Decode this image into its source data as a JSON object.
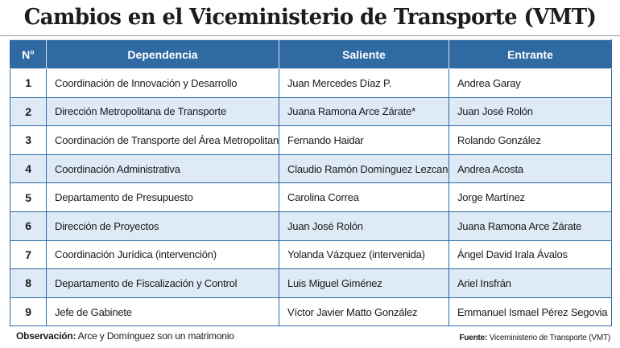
{
  "title": "Cambios en el Viceministerio de Transporte (VMT)",
  "table": {
    "headers": {
      "num": "N°",
      "dependencia": "Dependencia",
      "saliente": "Saliente",
      "entrante": "Entrante"
    },
    "rows": [
      {
        "num": "1",
        "dependencia": "Coordinación de Innovación y Desarrollo",
        "saliente": "Juan Mercedes Díaz P.",
        "entrante": "Andrea Garay"
      },
      {
        "num": "2",
        "dependencia": "Dirección Metropolitana de Transporte",
        "saliente": "Juana Ramona Arce Zárate*",
        "entrante": "Juan José Rolón"
      },
      {
        "num": "3",
        "dependencia": "Coordinación de Transporte del Área Metropolitana",
        "saliente": "Fernando Haidar",
        "entrante": "Rolando González"
      },
      {
        "num": "4",
        "dependencia": "Coordinación Administrativa",
        "saliente": "Claudio Ramón Domínguez Lezcano*",
        "entrante": "Andrea Acosta"
      },
      {
        "num": "5",
        "dependencia": "Departamento de Presupuesto",
        "saliente": "Carolina Correa",
        "entrante": "Jorge Martínez"
      },
      {
        "num": "6",
        "dependencia": "Dirección de Proyectos",
        "saliente": "Juan José Rolón",
        "entrante": "Juana Ramona Arce Zárate"
      },
      {
        "num": "7",
        "dependencia": "Coordinación Jurídica (intervención)",
        "saliente": "Yolanda Vázquez (intervenida)",
        "entrante": "Ángel David Irala Ávalos"
      },
      {
        "num": "8",
        "dependencia": "Departamento de Fiscalización y Control",
        "saliente": "Luis Miguel Giménez",
        "entrante": "Ariel Insfrán"
      },
      {
        "num": "9",
        "dependencia": "Jefe de Gabinete",
        "saliente": "Víctor Javier Matto González",
        "entrante": "Emmanuel Ismael Pérez Segovia"
      }
    ]
  },
  "footer": {
    "observacion_label": "Observación:",
    "observacion_text": " Arce y Domínguez son un matrimonio",
    "fuente_label": "Fuente:",
    "fuente_text": " Viceministerio de Transporte (VMT)"
  },
  "colors": {
    "header_bg": "#2f6aa3",
    "alt_row_bg": "#deeaf6"
  }
}
